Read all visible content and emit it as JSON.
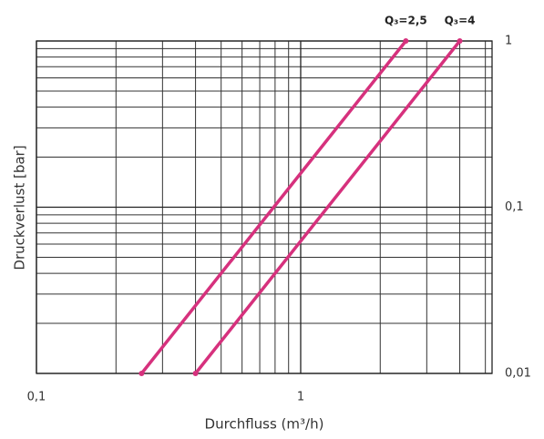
{
  "chart_data": {
    "type": "line",
    "xlabel": "Durchfluss (m³/h)",
    "ylabel": "Druckverlust [bar]",
    "xscale": "log",
    "yscale": "log",
    "xlim": [
      0.1,
      5.3
    ],
    "ylim": [
      0.01,
      1
    ],
    "xticks": [
      {
        "value": 0.1,
        "label": "0,1"
      },
      1
    ],
    "yticks": [
      {
        "value": 0.01,
        "label": "0,01"
      },
      {
        "value": 0.1,
        "label": "0,1"
      },
      1
    ],
    "grid": true,
    "minor_grid": true,
    "series": [
      {
        "name": "Q₃=2,5",
        "color": "#d6317d",
        "x": [
          0.25,
          2.5
        ],
        "values": [
          0.01,
          1
        ]
      },
      {
        "name": "Q₃=4",
        "color": "#d6317d",
        "x": [
          0.4,
          4
        ],
        "values": [
          0.01,
          1
        ]
      }
    ]
  }
}
